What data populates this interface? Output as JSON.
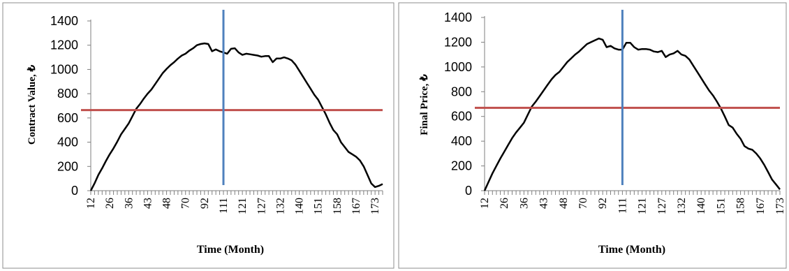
{
  "chart_data": [
    {
      "type": "line",
      "xlabel": "Time (Month)",
      "ylabel": "Contract Value, ₺",
      "ylim": [
        0,
        1400
      ],
      "yticks": [
        "0",
        "200",
        "400",
        "600",
        "800",
        "1000",
        "1200",
        "1400"
      ],
      "xticks": [
        "12",
        "26",
        "36",
        "43",
        "48",
        "70",
        "92",
        "111",
        "121",
        "127",
        "132",
        "140",
        "151",
        "158",
        "167",
        "173"
      ],
      "grid": false,
      "legend": "none",
      "series_color": "#000000",
      "vline": {
        "x_index": 35,
        "color": "#4f81bd"
      },
      "hline": {
        "y": 665,
        "color": "#c0504d"
      },
      "values": [
        0,
        60,
        130,
        185,
        245,
        300,
        350,
        405,
        465,
        510,
        555,
        615,
        675,
        715,
        760,
        800,
        835,
        880,
        925,
        970,
        1005,
        1035,
        1060,
        1090,
        1115,
        1130,
        1155,
        1175,
        1200,
        1210,
        1215,
        1210,
        1150,
        1165,
        1150,
        1140,
        1130,
        1170,
        1175,
        1140,
        1120,
        1130,
        1125,
        1120,
        1115,
        1105,
        1110,
        1110,
        1060,
        1090,
        1090,
        1100,
        1090,
        1075,
        1040,
        990,
        940,
        890,
        840,
        790,
        750,
        690,
        630,
        560,
        500,
        465,
        400,
        360,
        320,
        300,
        280,
        250,
        200,
        130,
        60,
        30,
        40,
        55
      ]
    },
    {
      "type": "line",
      "xlabel": "Time (Month)",
      "ylabel": "Final Price, ₺",
      "ylim": [
        0,
        1400
      ],
      "yticks": [
        "0",
        "200",
        "400",
        "600",
        "800",
        "1000",
        "1200",
        "1400"
      ],
      "xticks": [
        "12",
        "26",
        "36",
        "43",
        "48",
        "70",
        "92",
        "111",
        "121",
        "127",
        "132",
        "140",
        "151",
        "158",
        "167",
        "173"
      ],
      "grid": false,
      "legend": "none",
      "series_color": "#000000",
      "vline": {
        "x_index": 35,
        "color": "#4f81bd"
      },
      "hline": {
        "y": 670,
        "color": "#c0504d"
      },
      "values": [
        0,
        70,
        140,
        200,
        260,
        315,
        370,
        425,
        470,
        510,
        550,
        615,
        680,
        720,
        765,
        810,
        855,
        900,
        935,
        960,
        1000,
        1040,
        1070,
        1100,
        1125,
        1155,
        1185,
        1200,
        1215,
        1230,
        1220,
        1160,
        1170,
        1150,
        1140,
        1140,
        1195,
        1195,
        1160,
        1140,
        1145,
        1145,
        1140,
        1125,
        1120,
        1130,
        1080,
        1100,
        1110,
        1130,
        1100,
        1090,
        1060,
        1010,
        960,
        910,
        860,
        810,
        770,
        720,
        665,
        600,
        530,
        510,
        460,
        420,
        360,
        340,
        330,
        300,
        260,
        210,
        150,
        90,
        50,
        10
      ]
    }
  ]
}
